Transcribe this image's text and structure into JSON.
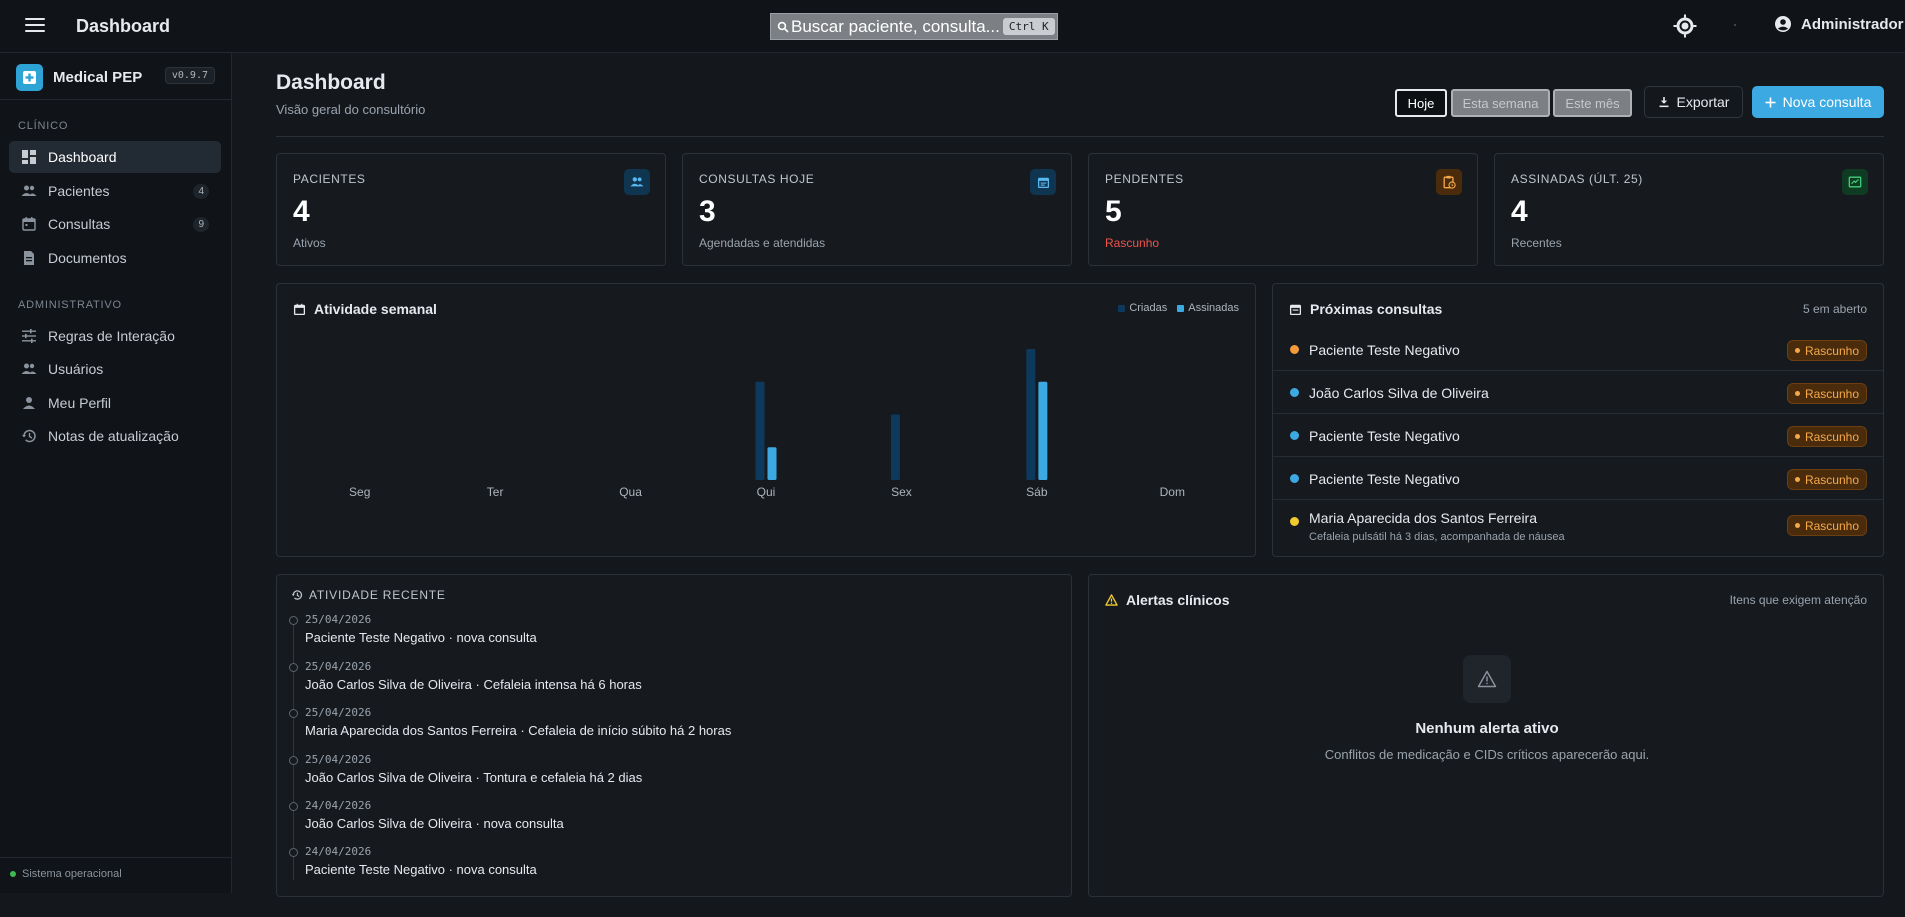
{
  "topbar": {
    "title": "Dashboard",
    "search_text": "Buscar paciente, consulta...",
    "search_shortcut": "Ctrl K",
    "user_name": "Administrador"
  },
  "sidebar": {
    "brand": "Medical PEP",
    "version": "v0.9.7",
    "sections": [
      {
        "label": "CLÍNICO",
        "items": [
          {
            "label": "Dashboard",
            "icon": "dashboard-icon",
            "active": true
          },
          {
            "label": "Pacientes",
            "icon": "people-icon",
            "badge": "4"
          },
          {
            "label": "Consultas",
            "icon": "calendar-icon",
            "badge": "9"
          },
          {
            "label": "Documentos",
            "icon": "document-icon"
          }
        ]
      },
      {
        "label": "ADMINISTRATIVO",
        "items": [
          {
            "label": "Regras de Interação",
            "icon": "sliders-icon"
          },
          {
            "label": "Usuários",
            "icon": "people-icon"
          },
          {
            "label": "Meu Perfil",
            "icon": "person-icon"
          },
          {
            "label": "Notas de atualização",
            "icon": "history-icon"
          }
        ]
      }
    ],
    "status": "Sistema operacional"
  },
  "header": {
    "title": "Dashboard",
    "subtitle": "Visão geral do consultório",
    "periods": [
      "Hoje",
      "Esta semana",
      "Este mês"
    ],
    "selected_period": "Hoje",
    "export_label": "Exportar",
    "new_label": "Nova consulta"
  },
  "stats": [
    {
      "label": "PACIENTES",
      "value": "4",
      "sub": "Ativos",
      "icon": "people-icon",
      "icon_bg": "#0f3550",
      "icon_color": "#5ab8f0"
    },
    {
      "label": "CONSULTAS HOJE",
      "value": "3",
      "sub": "Agendadas e atendidas",
      "icon": "calendar-icon",
      "icon_bg": "#0f3550",
      "icon_color": "#5ab8f0"
    },
    {
      "label": "PENDENTES",
      "value": "5",
      "sub": "Rascunho",
      "sub_color": "red",
      "icon": "clipboard-clock-icon",
      "icon_bg": "#4a2c0d",
      "icon_color": "#f5a849"
    },
    {
      "label": "ASSINADAS (ÚLT. 25)",
      "value": "4",
      "sub": "Recentes",
      "icon": "signature-icon",
      "icon_bg": "#0f3b22",
      "icon_color": "#3fd07a"
    }
  ],
  "weekly": {
    "title": "Atividade semanal",
    "legend": {
      "created": "Criadas",
      "signed": "Assinadas"
    },
    "colors": {
      "created": "#0d3a5c",
      "signed": "#3da9e3"
    }
  },
  "chart_data": {
    "type": "bar",
    "categories": [
      "Seg",
      "Ter",
      "Qua",
      "Qui",
      "Sex",
      "Sáb",
      "Dom"
    ],
    "series": [
      {
        "name": "Criadas",
        "values": [
          0,
          0,
          0,
          3,
          2,
          4,
          0
        ]
      },
      {
        "name": "Assinadas",
        "values": [
          0,
          0,
          0,
          1,
          0,
          3,
          0
        ]
      }
    ],
    "ylim": [
      0,
      4
    ],
    "legend": "top-right",
    "grid": false
  },
  "upcoming": {
    "title": "Próximas consultas",
    "count": "5 em aberto",
    "items": [
      {
        "name": "Paciente Teste Negativo",
        "status": "Rascunho",
        "dot": "#f59a3a"
      },
      {
        "name": "João Carlos Silva de Oliveira",
        "status": "Rascunho",
        "dot": "#3da9e3"
      },
      {
        "name": "Paciente Teste Negativo",
        "status": "Rascunho",
        "dot": "#3da9e3"
      },
      {
        "name": "Paciente Teste Negativo",
        "status": "Rascunho",
        "dot": "#3da9e3"
      },
      {
        "name": "Maria Aparecida dos Santos Ferreira",
        "desc": "Cefaleia pulsátil há 3 dias, acompanhada de náusea",
        "status": "Rascunho",
        "dot": "#f0c92f"
      }
    ]
  },
  "recent": {
    "title": "ATIVIDADE RECENTE",
    "items": [
      {
        "date": "25/04/2026",
        "text": "Paciente Teste Negativo · nova consulta"
      },
      {
        "date": "25/04/2026",
        "text": "João Carlos Silva de Oliveira · Cefaleia intensa há 6 horas"
      },
      {
        "date": "25/04/2026",
        "text": "Maria Aparecida dos Santos Ferreira · Cefaleia de início súbito há 2 horas"
      },
      {
        "date": "25/04/2026",
        "text": "João Carlos Silva de Oliveira · Tontura e cefaleia há 2 dias"
      },
      {
        "date": "24/04/2026",
        "text": "João Carlos Silva de Oliveira · nova consulta"
      },
      {
        "date": "24/04/2026",
        "text": "Paciente Teste Negativo · nova consulta"
      }
    ]
  },
  "alerts": {
    "title": "Alertas clínicos",
    "hint": "Itens que exigem atenção",
    "empty_title": "Nenhum alerta ativo",
    "empty_sub": "Conflitos de medicação e CIDs críticos aparecerão aqui."
  }
}
